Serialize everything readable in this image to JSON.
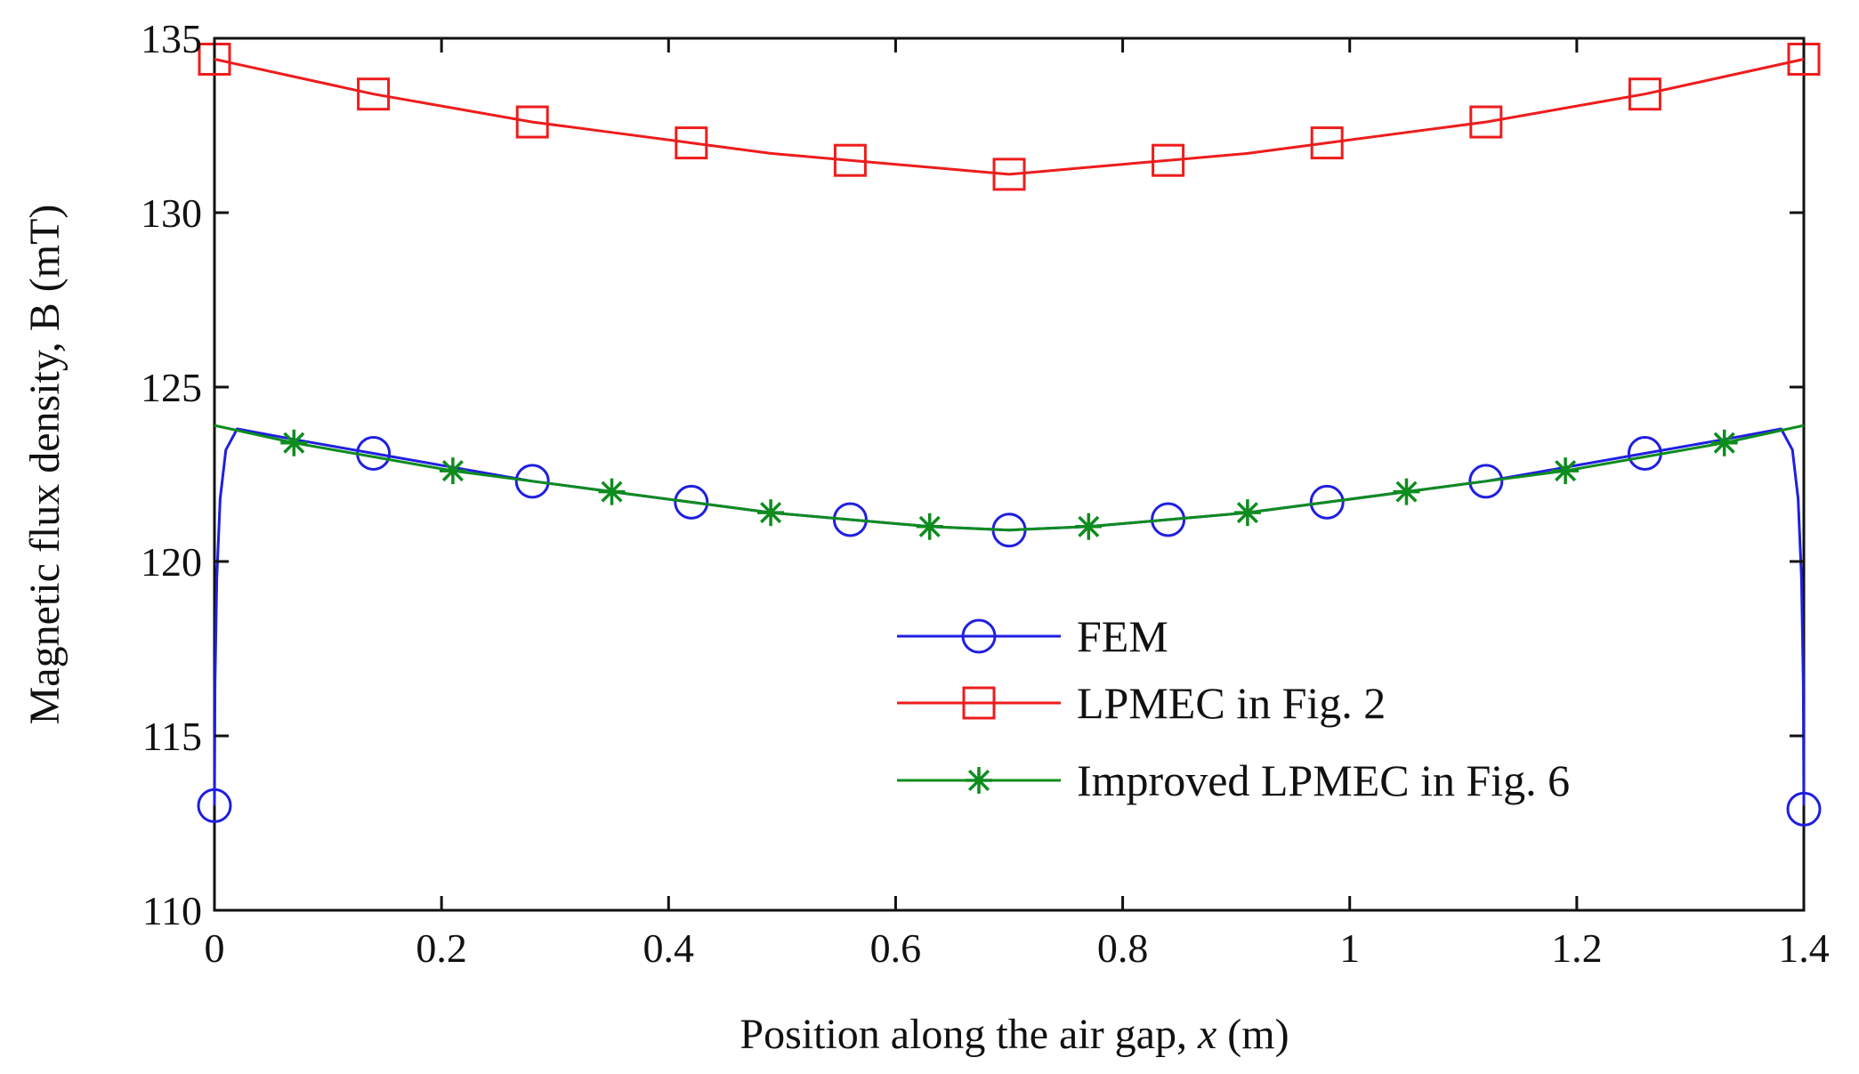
{
  "chart_data": {
    "type": "line",
    "title": "",
    "xlabel": "Position along the air gap, x (m)",
    "xlabel_parts": [
      "Position along the air gap, ",
      "x",
      " (m)"
    ],
    "ylabel": "Magnetic flux density, B (mT)",
    "xlim": [
      0,
      1.4
    ],
    "ylim": [
      110,
      135
    ],
    "xticks": [
      0,
      0.2,
      0.4,
      0.6,
      0.8,
      1,
      1.2,
      1.4
    ],
    "xtick_labels": [
      "0",
      "0.2",
      "0.4",
      "0.6",
      "0.8",
      "1",
      "1.2",
      "1.4"
    ],
    "yticks": [
      110,
      115,
      120,
      125,
      130,
      135
    ],
    "ytick_labels": [
      "110",
      "115",
      "120",
      "125",
      "130",
      "135"
    ],
    "grid": false,
    "legend_position": "lower-right",
    "series": [
      {
        "name": "FEM",
        "color": "#1f1fe0",
        "marker": "circle",
        "x": [
          0,
          0.0005,
          0.002,
          0.005,
          0.01,
          0.02,
          0.07,
          0.14,
          0.21,
          0.28,
          0.35,
          0.42,
          0.49,
          0.56,
          0.63,
          0.7,
          0.77,
          0.84,
          0.91,
          0.98,
          1.05,
          1.12,
          1.19,
          1.26,
          1.33,
          1.38,
          1.39,
          1.395,
          1.398,
          1.3995,
          1.4
        ],
        "y": [
          113.0,
          116.5,
          119.5,
          121.8,
          123.2,
          123.8,
          123.5,
          123.1,
          122.7,
          122.3,
          122.0,
          121.7,
          121.4,
          121.2,
          121.0,
          120.9,
          121.0,
          121.2,
          121.4,
          121.7,
          122.0,
          122.3,
          122.7,
          123.1,
          123.5,
          123.8,
          123.2,
          121.8,
          119.5,
          116.5,
          113.0
        ],
        "marker_x": [
          0,
          0.14,
          0.28,
          0.42,
          0.56,
          0.7,
          0.84,
          0.98,
          1.12,
          1.26,
          1.4
        ],
        "marker_y": [
          113.0,
          123.1,
          122.3,
          121.7,
          121.2,
          120.9,
          121.2,
          121.7,
          122.3,
          123.1,
          112.9
        ]
      },
      {
        "name": "LPMEC in Fig. 2",
        "color": "#ee1c1c",
        "marker": "square",
        "x": [
          0,
          0.07,
          0.14,
          0.21,
          0.28,
          0.35,
          0.42,
          0.49,
          0.56,
          0.63,
          0.7,
          0.77,
          0.84,
          0.91,
          0.98,
          1.05,
          1.12,
          1.19,
          1.26,
          1.33,
          1.4
        ],
        "y": [
          134.4,
          133.9,
          133.4,
          133.0,
          132.6,
          132.3,
          132.0,
          131.7,
          131.5,
          131.3,
          131.1,
          131.3,
          131.5,
          131.7,
          132.0,
          132.3,
          132.6,
          133.0,
          133.4,
          133.9,
          134.4
        ],
        "marker_x": [
          0,
          0.14,
          0.28,
          0.42,
          0.56,
          0.7,
          0.84,
          0.98,
          1.12,
          1.26,
          1.4
        ],
        "marker_y": [
          134.4,
          133.4,
          132.6,
          132.0,
          131.5,
          131.1,
          131.5,
          132.0,
          132.6,
          133.4,
          134.4
        ]
      },
      {
        "name": "Improved LPMEC in Fig. 6",
        "color": "#0e8c1e",
        "marker": "asterisk",
        "x": [
          0,
          0.07,
          0.14,
          0.21,
          0.28,
          0.35,
          0.42,
          0.49,
          0.56,
          0.63,
          0.7,
          0.77,
          0.84,
          0.91,
          0.98,
          1.05,
          1.12,
          1.19,
          1.26,
          1.33,
          1.4
        ],
        "y": [
          123.9,
          123.4,
          123.0,
          122.6,
          122.3,
          122.0,
          121.7,
          121.4,
          121.2,
          121.0,
          120.9,
          121.0,
          121.2,
          121.4,
          121.7,
          122.0,
          122.3,
          122.6,
          123.0,
          123.4,
          123.9
        ],
        "marker_x": [
          0.07,
          0.21,
          0.35,
          0.49,
          0.63,
          0.77,
          0.91,
          1.05,
          1.19,
          1.33
        ],
        "marker_y": [
          123.4,
          122.6,
          122.0,
          121.4,
          121.0,
          121.0,
          121.4,
          122.0,
          122.6,
          123.4
        ]
      }
    ]
  }
}
